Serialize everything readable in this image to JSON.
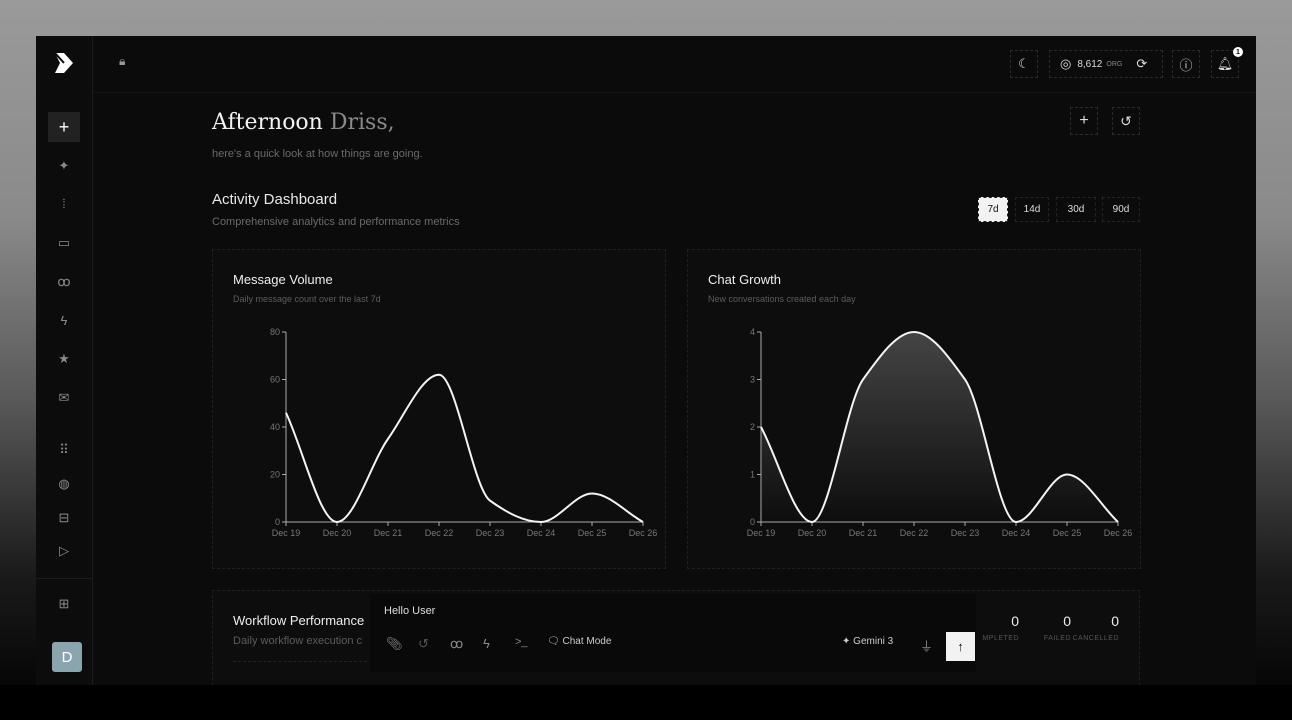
{
  "topbar": {
    "credits": "8,612",
    "credits_unit": "ORG",
    "notification_count": "1"
  },
  "greeting": {
    "prefix": "Afternoon",
    "name": "Driss,",
    "subtitle": "here's a quick look at how things are going."
  },
  "dashboard": {
    "title": "Activity Dashboard",
    "subtitle": "Comprehensive analytics and performance metrics",
    "ranges": [
      "7d",
      "14d",
      "30d",
      "90d"
    ],
    "selected_range": "7d"
  },
  "sidebar": {
    "avatar_letter": "D",
    "items": [
      "new-chat",
      "ai-sparkles",
      "audio-waveform",
      "inbox",
      "workflows",
      "automations",
      "favorites",
      "mail",
      "apps",
      "web",
      "archive",
      "play",
      "add-widget"
    ]
  },
  "chart_data": [
    {
      "type": "line",
      "title": "Message Volume",
      "subtitle": "Daily message count over the last 7d",
      "categories": [
        "Dec 19",
        "Dec 20",
        "Dec 21",
        "Dec 22",
        "Dec 23",
        "Dec 24",
        "Dec 25",
        "Dec 26"
      ],
      "values": [
        46,
        0,
        35,
        62,
        9,
        0,
        12,
        0
      ],
      "ylim": [
        0,
        80
      ],
      "yticks": [
        0,
        20,
        40,
        60,
        80
      ],
      "area": false
    },
    {
      "type": "area",
      "title": "Chat Growth",
      "subtitle": "New conversations created each day",
      "categories": [
        "Dec 19",
        "Dec 20",
        "Dec 21",
        "Dec 22",
        "Dec 23",
        "Dec 24",
        "Dec 25",
        "Dec 26"
      ],
      "values": [
        2,
        0,
        3,
        4,
        3,
        0,
        1,
        0
      ],
      "ylim": [
        0,
        4
      ],
      "yticks": [
        0,
        1,
        2,
        3,
        4
      ],
      "area": true
    }
  ],
  "workflow": {
    "title": "Workflow Performance",
    "subtitle": "Daily workflow execution c",
    "stats": [
      {
        "value": "0",
        "label": "MPLETED"
      },
      {
        "value": "0",
        "label": "FAILED"
      },
      {
        "value": "0",
        "label": "CANCELLED"
      }
    ]
  },
  "chat": {
    "message": "Hello User",
    "mode_label": "Chat Mode",
    "model": "Gemini 3"
  }
}
